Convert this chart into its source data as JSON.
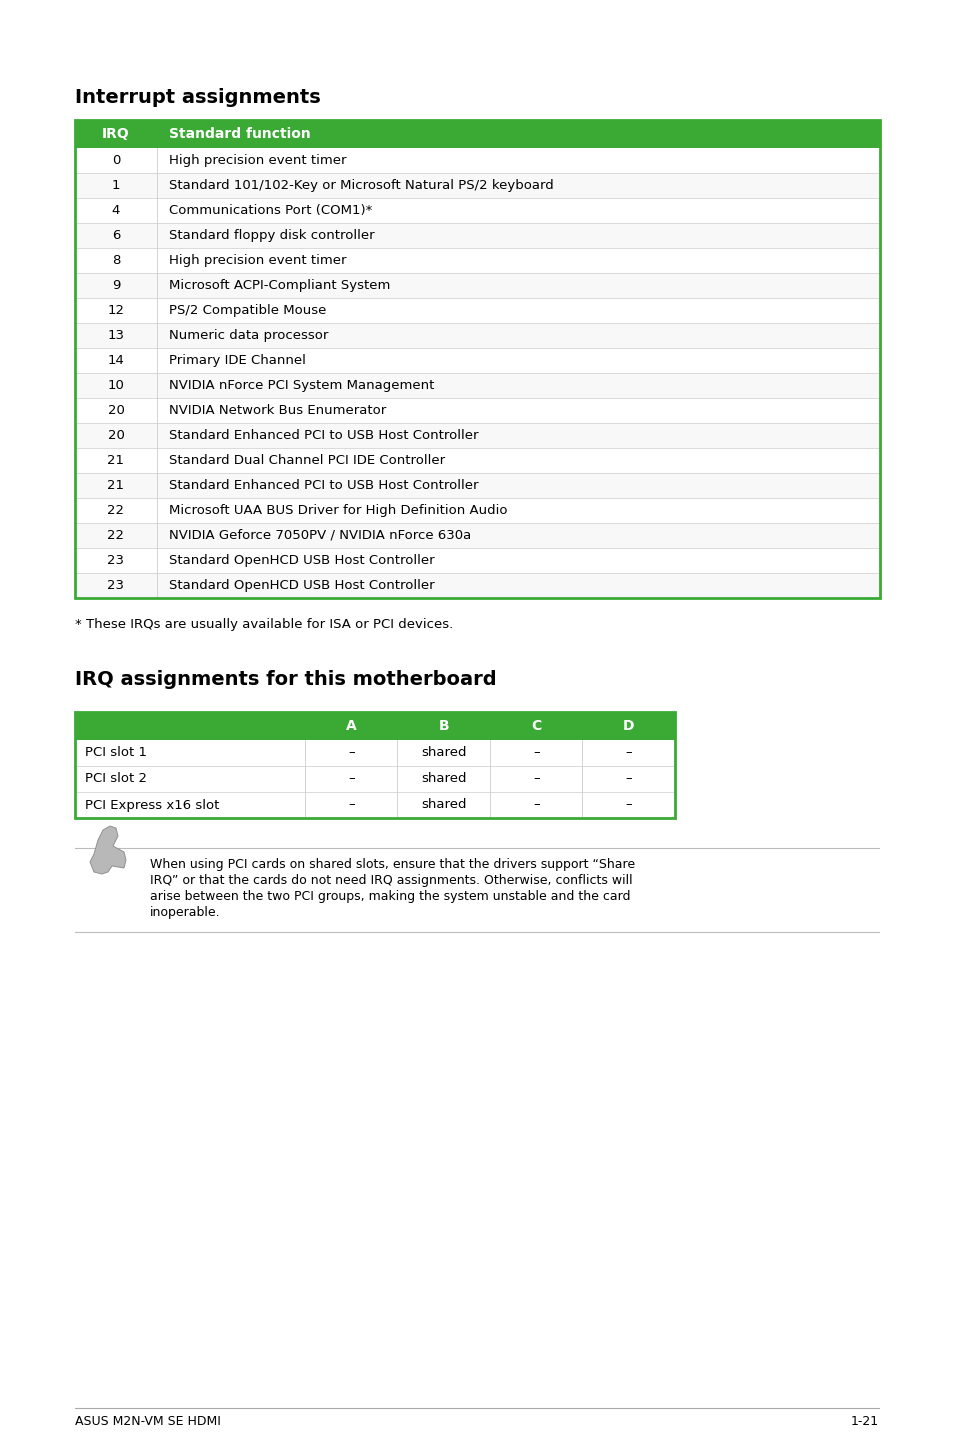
{
  "title1": "Interrupt assignments",
  "title2": "IRQ assignments for this motherboard",
  "header_color": "#3aaa35",
  "header_text_color": "#ffffff",
  "border_color": "#3aaa35",
  "inner_border_color": "#cccccc",
  "table1_headers": [
    "IRQ",
    "Standard function"
  ],
  "table1_rows": [
    [
      "0",
      "High precision event timer"
    ],
    [
      "1",
      "Standard 101/102-Key or Microsoft Natural PS/2 keyboard"
    ],
    [
      "4",
      "Communications Port (COM1)*"
    ],
    [
      "6",
      "Standard floppy disk controller"
    ],
    [
      "8",
      "High precision event timer"
    ],
    [
      "9",
      "Microsoft ACPI-Compliant System"
    ],
    [
      "12",
      "PS/2 Compatible Mouse"
    ],
    [
      "13",
      "Numeric data processor"
    ],
    [
      "14",
      "Primary IDE Channel"
    ],
    [
      "10",
      "NVIDIA nForce PCI System Management"
    ],
    [
      "20",
      "NVIDIA Network Bus Enumerator"
    ],
    [
      "20",
      "Standard Enhanced PCI to USB Host Controller"
    ],
    [
      "21",
      "Standard Dual Channel PCI IDE Controller"
    ],
    [
      "21",
      "Standard Enhanced PCI to USB Host Controller"
    ],
    [
      "22",
      "Microsoft UAA BUS Driver for High Definition Audio"
    ],
    [
      "22",
      "NVIDIA Geforce 7050PV / NVIDIA nForce 630a"
    ],
    [
      "23",
      "Standard OpenHCD USB Host Controller"
    ],
    [
      "23",
      "Standard OpenHCD USB Host Controller"
    ]
  ],
  "footnote": "* These IRQs are usually available for ISA or PCI devices.",
  "table2_headers": [
    "A",
    "B",
    "C",
    "D"
  ],
  "table2_rows": [
    [
      "PCI slot 1",
      "–",
      "shared",
      "–",
      "–"
    ],
    [
      "PCI slot 2",
      "–",
      "shared",
      "–",
      "–"
    ],
    [
      "PCI Express x16 slot",
      "–",
      "shared",
      "–",
      "–"
    ]
  ],
  "note_lines": [
    "When using PCI cards on shared slots, ensure that the drivers support “Share",
    "IRQ” or that the cards do not need IRQ assignments. Otherwise, conflicts will",
    "arise between the two PCI groups, making the system unstable and the card",
    "inoperable."
  ],
  "footer_left": "ASUS M2N-VM SE HDMI",
  "footer_right": "1-21",
  "bg_color": "#ffffff"
}
